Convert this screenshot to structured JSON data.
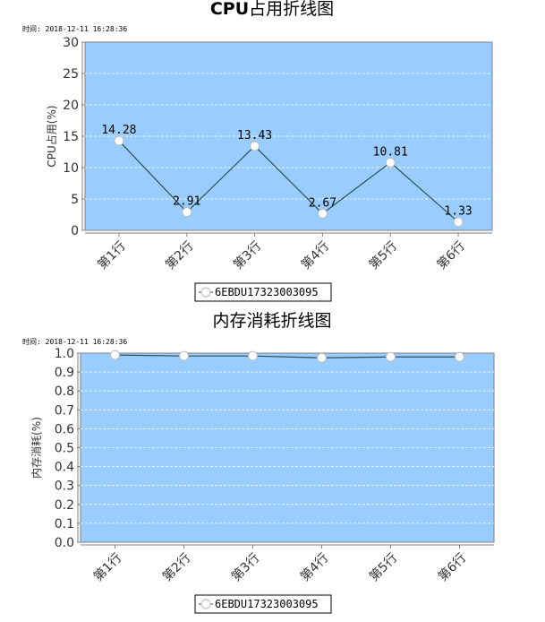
{
  "chart_data": [
    {
      "type": "line",
      "title": "CPU占用折线图",
      "timestamp": "时间: 2018-12-11 16:28:36",
      "ylabel": "CPU占用(%)",
      "categories": [
        "第1行",
        "第2行",
        "第3行",
        "第4行",
        "第5行",
        "第6行"
      ],
      "series": [
        {
          "name": "6EBDU17323003095",
          "values": [
            14.28,
            2.91,
            13.43,
            2.67,
            10.81,
            1.33
          ]
        }
      ],
      "data_labels": [
        "14.28",
        "2.91",
        "13.43",
        "2.67",
        "10.81",
        "1.33"
      ],
      "yticks": [
        "0",
        "5",
        "10",
        "15",
        "20",
        "25",
        "30"
      ],
      "ylim": [
        0,
        30
      ],
      "grid": true,
      "legend": "bottom-center",
      "colors": {
        "plot_bg": "#99ccff",
        "line": "#2f4f4f",
        "grid": "#ffffff",
        "marker": "#ffffff"
      }
    },
    {
      "type": "line",
      "title": "内存消耗折线图",
      "timestamp": "时间: 2018-12-11 16:28:36",
      "ylabel": "内存消耗(%)",
      "categories": [
        "第1行",
        "第2行",
        "第3行",
        "第4行",
        "第5行",
        "第6行"
      ],
      "series": [
        {
          "name": "6EBDU17323003095",
          "values": [
            0.99,
            0.985,
            0.985,
            0.975,
            0.98,
            0.98
          ]
        }
      ],
      "yticks": [
        "0.0",
        "0.1",
        "0.2",
        "0.3",
        "0.4",
        "0.5",
        "0.6",
        "0.7",
        "0.8",
        "0.9",
        "1.0"
      ],
      "ylim": [
        0,
        1
      ],
      "grid": true,
      "legend": "bottom-center",
      "colors": {
        "plot_bg": "#99ccff",
        "line": "#2f4f4f",
        "grid": "#ffffff",
        "marker": "#ffffff"
      }
    }
  ]
}
